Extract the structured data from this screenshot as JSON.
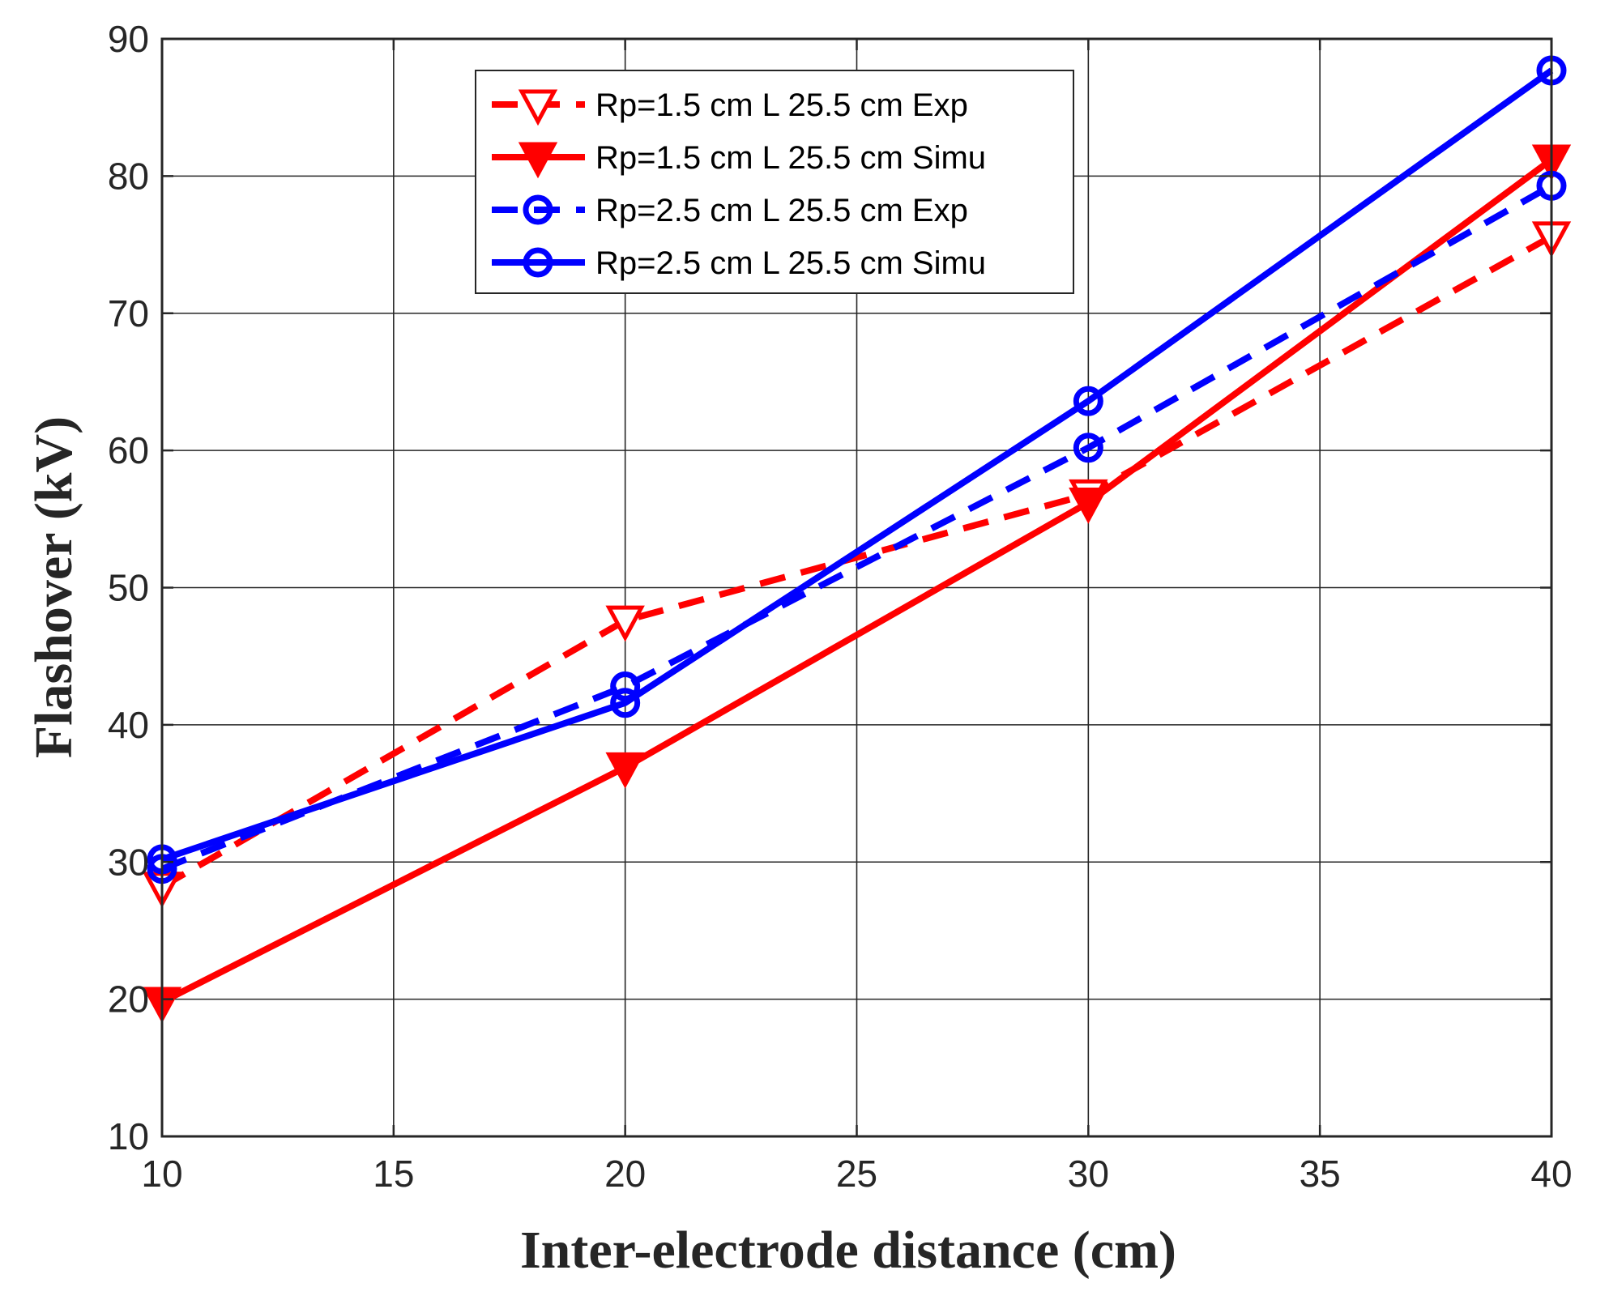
{
  "chart_data": {
    "type": "line",
    "title": "",
    "xlabel": "Inter-electrode distance (cm)",
    "ylabel": "Flashover (kV)",
    "xlim": [
      10,
      40
    ],
    "ylim": [
      10,
      90
    ],
    "xticks": [
      10,
      15,
      20,
      25,
      30,
      35,
      40
    ],
    "yticks": [
      10,
      20,
      30,
      40,
      50,
      60,
      70,
      80,
      90
    ],
    "xtick_labels": [
      "10",
      "15",
      "20",
      "25",
      "30",
      "35",
      "40"
    ],
    "ytick_labels": [
      "10",
      "20",
      "30",
      "40",
      "50",
      "60",
      "70",
      "80",
      "90"
    ],
    "grid": true,
    "legend_position": "top-center",
    "x": [
      10,
      20,
      30,
      40
    ],
    "series": [
      {
        "name": "Rp=1.5 cm L 25.5 cm Exp",
        "values": [
          28.2,
          47.6,
          56.8,
          75.6
        ],
        "color": "#ff0000",
        "dash": "dashed",
        "marker": "triangle-down-open"
      },
      {
        "name": "Rp=1.5 cm L 25.5 cm Simu",
        "values": [
          19.8,
          36.9,
          56.2,
          81.2
        ],
        "color": "#ff0000",
        "dash": "solid",
        "marker": "triangle-down-filled"
      },
      {
        "name": "Rp=2.5 cm L 25.5 cm Exp",
        "values": [
          29.5,
          42.8,
          60.2,
          79.3
        ],
        "color": "#0000ff",
        "dash": "dashed",
        "marker": "circle-open"
      },
      {
        "name": "Rp=2.5 cm L 25.5 cm Simu",
        "values": [
          30.2,
          41.6,
          63.6,
          87.7
        ],
        "color": "#0000ff",
        "dash": "solid",
        "marker": "circle-open"
      }
    ]
  }
}
